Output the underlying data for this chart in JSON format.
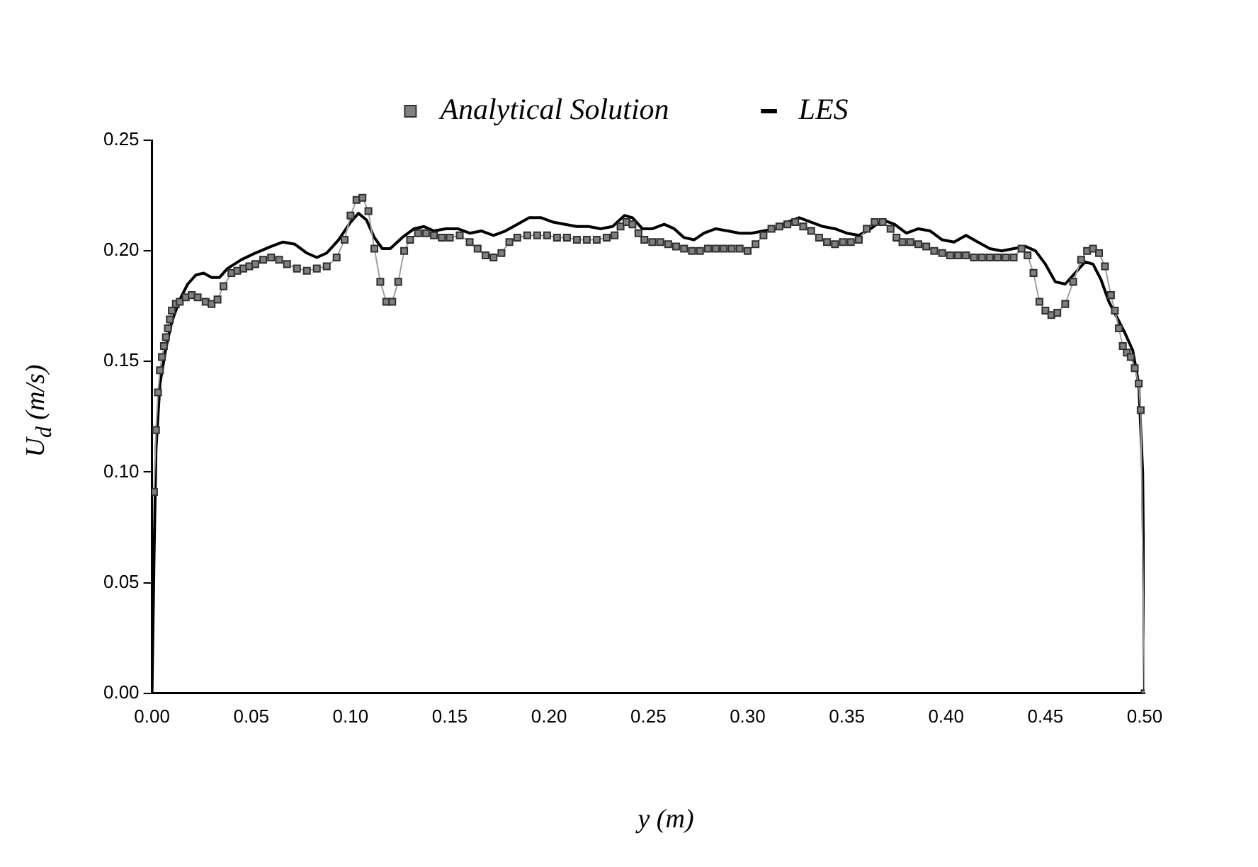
{
  "chart_data": {
    "type": "line",
    "xlabel": "y (m)",
    "ylabel": "U$_{d}$ (m/s)",
    "legend": "top",
    "grid": false,
    "xlim": [
      0,
      0.5
    ],
    "ylim": [
      0,
      0.25
    ],
    "xticks": [
      {
        "value": 0,
        "label": "0.00"
      },
      {
        "value": 0.05,
        "label": "0.05"
      },
      {
        "value": 0.1,
        "label": "0.10"
      },
      {
        "value": 0.15,
        "label": "0.15"
      },
      {
        "value": 0.2,
        "label": "0.20"
      },
      {
        "value": 0.25,
        "label": "0.25"
      },
      {
        "value": 0.3,
        "label": "0.30"
      },
      {
        "value": 0.35,
        "label": "0.35"
      },
      {
        "value": 0.4,
        "label": "0.40"
      },
      {
        "value": 0.45,
        "label": "0.45"
      },
      {
        "value": 0.5,
        "label": "0.50"
      }
    ],
    "yticks": [
      {
        "value": 0,
        "label": "0.00"
      },
      {
        "value": 0.05,
        "label": "0.05"
      },
      {
        "value": 0.1,
        "label": "0.10"
      },
      {
        "value": 0.15,
        "label": "0.15"
      },
      {
        "value": 0.2,
        "label": "0.20"
      },
      {
        "value": 0.25,
        "label": "0.25"
      }
    ],
    "series": [
      {
        "name": "Analytical Solution",
        "type": "line",
        "color": "#808080",
        "marker": "square",
        "x": [
          0.001,
          0.002,
          0.003,
          0.004,
          0.005,
          0.006,
          0.007,
          0.008,
          0.009,
          0.01,
          0.012,
          0.014,
          0.017,
          0.02,
          0.023,
          0.027,
          0.03,
          0.033,
          0.036,
          0.04,
          0.043,
          0.046,
          0.049,
          0.052,
          0.056,
          0.06,
          0.064,
          0.068,
          0.073,
          0.078,
          0.083,
          0.088,
          0.093,
          0.097,
          0.1,
          0.103,
          0.106,
          0.109,
          0.112,
          0.115,
          0.118,
          0.121,
          0.124,
          0.127,
          0.13,
          0.134,
          0.138,
          0.142,
          0.146,
          0.15,
          0.155,
          0.16,
          0.164,
          0.168,
          0.172,
          0.176,
          0.18,
          0.184,
          0.189,
          0.194,
          0.199,
          0.204,
          0.209,
          0.214,
          0.219,
          0.224,
          0.229,
          0.233,
          0.236,
          0.239,
          0.242,
          0.245,
          0.248,
          0.252,
          0.256,
          0.26,
          0.264,
          0.268,
          0.272,
          0.276,
          0.28,
          0.284,
          0.288,
          0.292,
          0.296,
          0.3,
          0.304,
          0.308,
          0.312,
          0.316,
          0.32,
          0.324,
          0.328,
          0.332,
          0.336,
          0.34,
          0.344,
          0.348,
          0.352,
          0.356,
          0.36,
          0.364,
          0.368,
          0.372,
          0.375,
          0.378,
          0.382,
          0.386,
          0.39,
          0.394,
          0.398,
          0.402,
          0.406,
          0.41,
          0.414,
          0.418,
          0.422,
          0.426,
          0.43,
          0.434,
          0.438,
          0.441,
          0.444,
          0.447,
          0.45,
          0.453,
          0.456,
          0.46,
          0.464,
          0.468,
          0.471,
          0.474,
          0.477,
          0.48,
          0.483,
          0.485,
          0.487,
          0.489,
          0.491,
          0.493,
          0.495,
          0.497,
          0.498,
          0.5
        ],
        "values": [
          0.091,
          0.119,
          0.136,
          0.146,
          0.152,
          0.157,
          0.161,
          0.165,
          0.169,
          0.173,
          0.176,
          0.177,
          0.179,
          0.18,
          0.179,
          0.177,
          0.176,
          0.178,
          0.184,
          0.19,
          0.191,
          0.192,
          0.193,
          0.194,
          0.196,
          0.197,
          0.196,
          0.194,
          0.192,
          0.191,
          0.192,
          0.193,
          0.197,
          0.205,
          0.216,
          0.223,
          0.224,
          0.218,
          0.201,
          0.186,
          0.177,
          0.177,
          0.186,
          0.2,
          0.205,
          0.208,
          0.208,
          0.207,
          0.206,
          0.206,
          0.207,
          0.204,
          0.201,
          0.198,
          0.197,
          0.199,
          0.204,
          0.206,
          0.207,
          0.207,
          0.207,
          0.206,
          0.206,
          0.205,
          0.205,
          0.205,
          0.206,
          0.207,
          0.211,
          0.213,
          0.212,
          0.208,
          0.205,
          0.204,
          0.204,
          0.203,
          0.202,
          0.201,
          0.2,
          0.2,
          0.201,
          0.201,
          0.201,
          0.201,
          0.201,
          0.2,
          0.203,
          0.207,
          0.21,
          0.211,
          0.212,
          0.213,
          0.211,
          0.209,
          0.206,
          0.204,
          0.203,
          0.204,
          0.204,
          0.205,
          0.21,
          0.213,
          0.213,
          0.21,
          0.206,
          0.204,
          0.204,
          0.203,
          0.202,
          0.2,
          0.199,
          0.198,
          0.198,
          0.198,
          0.197,
          0.197,
          0.197,
          0.197,
          0.197,
          0.197,
          0.201,
          0.198,
          0.19,
          0.177,
          0.173,
          0.171,
          0.172,
          0.176,
          0.186,
          0.196,
          0.2,
          0.201,
          0.199,
          0.193,
          0.18,
          0.173,
          0.165,
          0.157,
          0.154,
          0.152,
          0.147,
          0.14,
          0.128,
          0.0
        ]
      },
      {
        "name": "LES",
        "type": "line",
        "color": "#000000",
        "marker": "none",
        "x": [
          0,
          0.001,
          0.002,
          0.004,
          0.007,
          0.01,
          0.014,
          0.018,
          0.022,
          0.026,
          0.03,
          0.034,
          0.038,
          0.045,
          0.052,
          0.06,
          0.066,
          0.072,
          0.078,
          0.083,
          0.088,
          0.094,
          0.1,
          0.104,
          0.108,
          0.112,
          0.116,
          0.12,
          0.126,
          0.132,
          0.137,
          0.142,
          0.148,
          0.154,
          0.16,
          0.166,
          0.172,
          0.178,
          0.184,
          0.19,
          0.196,
          0.202,
          0.208,
          0.214,
          0.22,
          0.226,
          0.232,
          0.238,
          0.242,
          0.247,
          0.252,
          0.258,
          0.263,
          0.268,
          0.273,
          0.278,
          0.284,
          0.29,
          0.296,
          0.302,
          0.308,
          0.314,
          0.32,
          0.326,
          0.332,
          0.338,
          0.344,
          0.35,
          0.356,
          0.362,
          0.368,
          0.374,
          0.38,
          0.386,
          0.392,
          0.398,
          0.404,
          0.41,
          0.416,
          0.422,
          0.428,
          0.434,
          0.44,
          0.445,
          0.45,
          0.455,
          0.46,
          0.465,
          0.47,
          0.474,
          0.478,
          0.482,
          0.486,
          0.49,
          0.494,
          0.497,
          0.499,
          0.5
        ],
        "values": [
          0.0,
          0.06,
          0.11,
          0.14,
          0.156,
          0.168,
          0.178,
          0.185,
          0.189,
          0.19,
          0.188,
          0.188,
          0.192,
          0.196,
          0.199,
          0.202,
          0.204,
          0.203,
          0.199,
          0.197,
          0.199,
          0.205,
          0.213,
          0.217,
          0.214,
          0.206,
          0.201,
          0.201,
          0.206,
          0.21,
          0.211,
          0.209,
          0.21,
          0.21,
          0.208,
          0.209,
          0.207,
          0.209,
          0.212,
          0.215,
          0.215,
          0.213,
          0.212,
          0.211,
          0.211,
          0.21,
          0.211,
          0.216,
          0.215,
          0.21,
          0.21,
          0.212,
          0.21,
          0.206,
          0.205,
          0.208,
          0.21,
          0.209,
          0.208,
          0.208,
          0.209,
          0.21,
          0.213,
          0.215,
          0.213,
          0.211,
          0.21,
          0.208,
          0.207,
          0.21,
          0.214,
          0.212,
          0.208,
          0.21,
          0.209,
          0.205,
          0.204,
          0.207,
          0.204,
          0.201,
          0.2,
          0.201,
          0.202,
          0.2,
          0.194,
          0.186,
          0.185,
          0.19,
          0.195,
          0.194,
          0.187,
          0.177,
          0.17,
          0.163,
          0.155,
          0.14,
          0.1,
          0.0
        ]
      }
    ]
  }
}
